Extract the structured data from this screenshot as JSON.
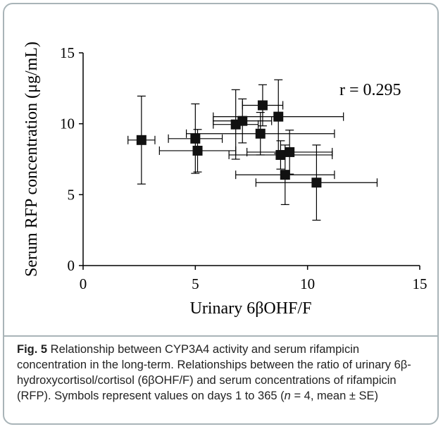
{
  "chart_data": {
    "type": "scatter",
    "xlabel": "Urinary 6βOHF/F",
    "ylabel": "Serum RFP concentration (μg/mL)",
    "xlim": [
      0,
      15
    ],
    "ylim": [
      0,
      15
    ],
    "x_ticks": [
      0,
      5,
      10,
      15
    ],
    "y_ticks": [
      0,
      5,
      10,
      15
    ],
    "annotation": "r = 0.295",
    "grid": false,
    "marker": "square",
    "error_bars": "mean ± SE",
    "points": [
      {
        "x": 2.6,
        "y": 8.85,
        "x_err": 0.6,
        "y_err": 3.1
      },
      {
        "x": 5.0,
        "y": 8.95,
        "x_err": 1.2,
        "y_err": 2.45
      },
      {
        "x": 5.1,
        "y": 8.1,
        "x_err": 1.7,
        "y_err": 1.5
      },
      {
        "x": 6.8,
        "y": 9.95,
        "x_err": 1.0,
        "y_err": 2.45
      },
      {
        "x": 7.1,
        "y": 10.2,
        "x_err": 1.3,
        "y_err": 1.55
      },
      {
        "x": 8.0,
        "y": 11.3,
        "x_err": 0.9,
        "y_err": 1.45
      },
      {
        "x": 7.9,
        "y": 9.3,
        "x_err": 3.3,
        "y_err": 1.5
      },
      {
        "x": 8.7,
        "y": 10.5,
        "x_err": 2.9,
        "y_err": 2.6
      },
      {
        "x": 8.8,
        "y": 7.8,
        "x_err": 2.3,
        "y_err": 1.0
      },
      {
        "x": 9.2,
        "y": 8.0,
        "x_err": 1.9,
        "y_err": 1.55
      },
      {
        "x": 9.0,
        "y": 6.4,
        "x_err": 2.2,
        "y_err": 2.1
      },
      {
        "x": 10.4,
        "y": 5.85,
        "x_err": 2.7,
        "y_err": 2.65
      }
    ]
  },
  "caption": {
    "fig_label": "Fig. 5",
    "text": " Relationship between CYP3A4 activity and serum rifampicin concentration in the long-term. Relationships between the ratio of urinary 6β-hydroxycortisol/cortisol (6βOHF/F) and serum concentrations of rifampicin (RFP). Symbols represent values on days 1 to 365 (",
    "n_symbol": "n",
    "text_end": " = 4, mean ± SE)"
  },
  "colors": {
    "frame": "#a9b4b8",
    "marker": "#111111",
    "axis": "#000000",
    "caption_text": "#222222"
  }
}
